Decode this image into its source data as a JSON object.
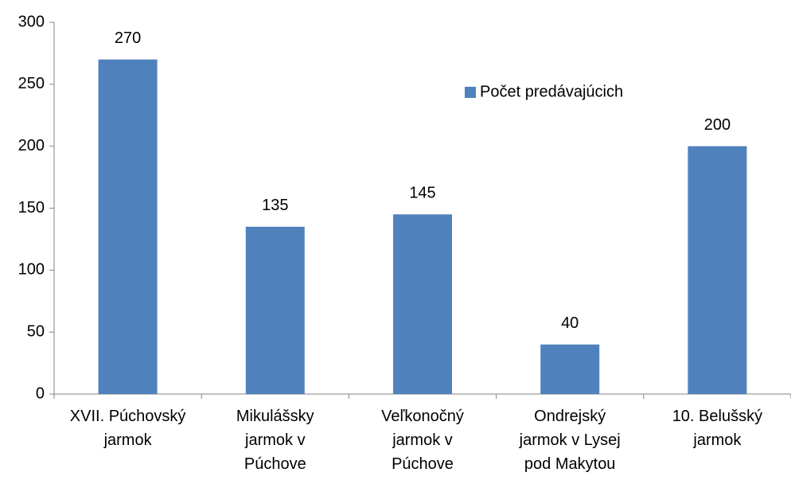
{
  "chart_data": {
    "type": "bar",
    "categories": [
      "XVII. Púchovský\njarmok",
      "Mikulášsky\njarmok v\nPúchove",
      "Veľkonočný\njarmok v\nPúchove",
      "Ondrejský\njarmok v Lysej\npod Makytou",
      "10. Belušský\njarmok"
    ],
    "series": [
      {
        "name": "Počet predávajúcich",
        "color": "#4f81bd",
        "values": [
          270,
          135,
          145,
          40,
          200
        ]
      }
    ],
    "ylim": [
      0,
      300
    ],
    "yticks": [
      0,
      50,
      100,
      150,
      200,
      250,
      300
    ],
    "grid": false,
    "legend": "top-right"
  }
}
